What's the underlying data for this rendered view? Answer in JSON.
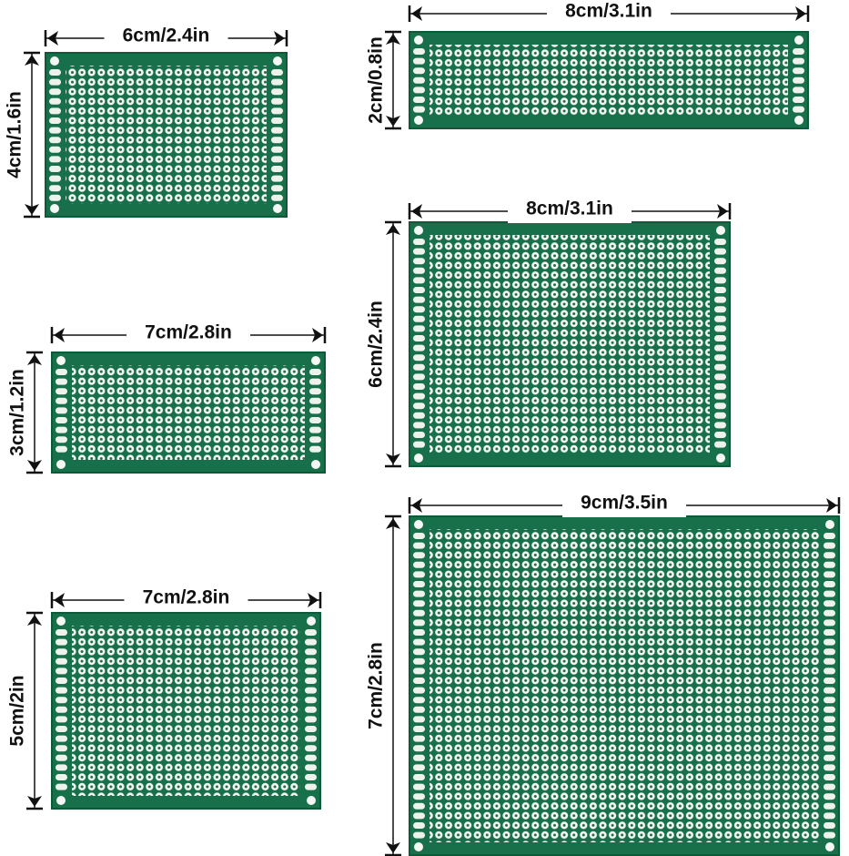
{
  "boards": [
    {
      "width_label": "6cm/2.4in",
      "height_label": "4cm/1.6in"
    },
    {
      "width_label": "8cm/3.1in",
      "height_label": "2cm/0.8in"
    },
    {
      "width_label": "8cm/3.1in",
      "height_label": "6cm/2.4in"
    },
    {
      "width_label": "7cm/2.8in",
      "height_label": "3cm/1.2in"
    },
    {
      "width_label": "7cm/2.8in",
      "height_label": "5cm/2in"
    },
    {
      "width_label": "9cm/3.5in",
      "height_label": "7cm/2.8in"
    }
  ]
}
